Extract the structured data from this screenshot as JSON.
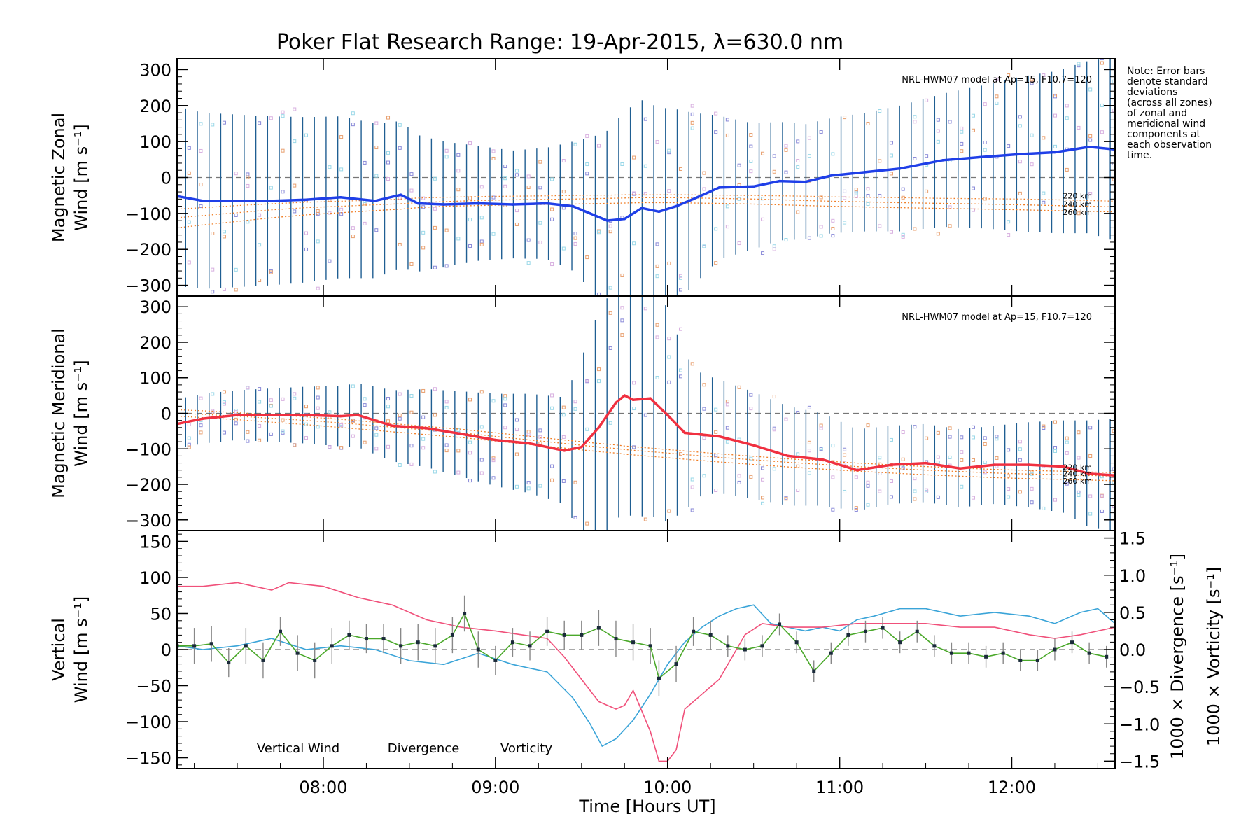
{
  "title": "Poker Flat Research Range: 19-Apr-2015, λ=630.0 nm",
  "note": [
    "Note: Error bars",
    "denote standard",
    "deviations",
    "(across all zones)",
    "of zonal and",
    "meridional wind",
    "components at",
    "each observation",
    "time."
  ],
  "x_axis": {
    "label": "Time [Hours UT]",
    "range_hours": [
      7.15,
      12.6
    ],
    "ticks": [
      {
        "value": 8,
        "label": "08:00"
      },
      {
        "value": 9,
        "label": "09:00"
      },
      {
        "value": 10,
        "label": "10:00"
      },
      {
        "value": 11,
        "label": "11:00"
      },
      {
        "value": 12,
        "label": "12:00"
      }
    ]
  },
  "model_label": "NRL-HWM07 model at Ap=15, F10.7=120",
  "model_heights": [
    "220 km",
    "240 km",
    "260 km"
  ],
  "colors": {
    "zonal": "#1f3fe8",
    "meridional": "#f03040",
    "vertical": "#4aa82a",
    "divergence": "#3aa4d8",
    "vorticity": "#f0507a",
    "model": "#f07d24",
    "errorbar": "#1f5e92",
    "samples": "#8a8ad8"
  },
  "chart_data": [
    {
      "type": "line",
      "name": "zonal-panel",
      "ylabel": [
        "Magnetic Zonal",
        "Wind [m s⁻¹]"
      ],
      "ylim": [
        -330,
        330
      ],
      "yticks": [
        300,
        200,
        100,
        0,
        -100,
        -200,
        -300
      ],
      "x": [
        7.15,
        7.3,
        7.5,
        7.7,
        7.9,
        8.1,
        8.3,
        8.45,
        8.55,
        8.7,
        8.9,
        9.1,
        9.3,
        9.45,
        9.55,
        9.65,
        9.75,
        9.85,
        9.95,
        10.05,
        10.15,
        10.3,
        10.5,
        10.65,
        10.8,
        10.95,
        11.15,
        11.35,
        11.6,
        11.85,
        12.05,
        12.25,
        12.45,
        12.6
      ],
      "series": [
        {
          "values": [
            -52,
            -65,
            -65,
            -65,
            -62,
            -55,
            -65,
            -48,
            -72,
            -75,
            -72,
            -75,
            -72,
            -80,
            -100,
            -120,
            -115,
            -85,
            -95,
            -80,
            -60,
            -28,
            -25,
            -10,
            -12,
            5,
            15,
            25,
            48,
            58,
            65,
            70,
            85,
            78
          ]
        }
      ],
      "errorbar_half_width": [
        250,
        245,
        240,
        235,
        230,
        225,
        215,
        205,
        190,
        175,
        160,
        150,
        155,
        180,
        210,
        250,
        300,
        300,
        290,
        270,
        240,
        200,
        175,
        165,
        160,
        160,
        165,
        175,
        185,
        200,
        215,
        225,
        240,
        255
      ],
      "model_curves": [
        [
          -140,
          -132,
          -122,
          -112,
          -104,
          -98,
          -92,
          -88,
          -84,
          -80,
          -78,
          -76,
          -75,
          -74,
          -73,
          -72,
          -71,
          -70,
          -70,
          -70,
          -71,
          -72,
          -74,
          -76,
          -78,
          -80,
          -82,
          -84,
          -86,
          -88,
          -90,
          -92,
          -94,
          -96
        ],
        [
          -112,
          -106,
          -98,
          -90,
          -84,
          -80,
          -76,
          -73,
          -70,
          -67,
          -64,
          -62,
          -61,
          -60,
          -59,
          -58,
          -57,
          -56,
          -56,
          -56,
          -57,
          -58,
          -60,
          -62,
          -64,
          -66,
          -68,
          -70,
          -72,
          -74,
          -76,
          -78,
          -80,
          -82
        ],
        [
          -88,
          -84,
          -78,
          -73,
          -69,
          -66,
          -63,
          -60,
          -57,
          -55,
          -53,
          -52,
          -51,
          -50,
          -49,
          -49,
          -48,
          -48,
          -48,
          -48,
          -48,
          -49,
          -50,
          -51,
          -52,
          -54,
          -55,
          -56,
          -58,
          -59,
          -60,
          -62,
          -64,
          -66
        ]
      ]
    },
    {
      "type": "line",
      "name": "meridional-panel",
      "ylabel": [
        "Magnetic Meridional",
        "Wind [m s⁻¹]"
      ],
      "ylim": [
        -330,
        330
      ],
      "yticks": [
        300,
        200,
        100,
        0,
        -100,
        -200,
        -300
      ],
      "x": [
        7.15,
        7.3,
        7.5,
        7.7,
        7.9,
        8.1,
        8.2,
        8.4,
        8.6,
        8.8,
        9.0,
        9.2,
        9.4,
        9.5,
        9.6,
        9.7,
        9.75,
        9.8,
        9.9,
        10.0,
        10.1,
        10.2,
        10.3,
        10.5,
        10.7,
        10.9,
        11.1,
        11.3,
        11.5,
        11.7,
        11.9,
        12.1,
        12.3,
        12.45,
        12.6
      ],
      "series": [
        {
          "values": [
            -30,
            -15,
            -5,
            -5,
            -5,
            -8,
            -5,
            -35,
            -42,
            -58,
            -75,
            -85,
            -105,
            -95,
            -40,
            30,
            50,
            38,
            42,
            -5,
            -55,
            -60,
            -65,
            -90,
            -120,
            -130,
            -160,
            -145,
            -140,
            -155,
            -145,
            -145,
            -150,
            -170,
            -175
          ]
        }
      ],
      "errorbar_half_width": [
        70,
        70,
        70,
        75,
        80,
        85,
        90,
        100,
        110,
        120,
        130,
        140,
        150,
        250,
        330,
        330,
        330,
        330,
        330,
        300,
        220,
        170,
        160,
        150,
        140,
        130,
        115,
        110,
        110,
        110,
        110,
        120,
        130,
        150,
        160
      ],
      "model_curves": [
        [
          -8,
          -12,
          -18,
          -25,
          -32,
          -40,
          -44,
          -52,
          -60,
          -68,
          -78,
          -88,
          -98,
          -103,
          -108,
          -112,
          -115,
          -117,
          -121,
          -125,
          -129,
          -133,
          -137,
          -144,
          -151,
          -157,
          -163,
          -168,
          -173,
          -177,
          -181,
          -184,
          -186,
          -188,
          -190
        ],
        [
          0,
          -3,
          -8,
          -14,
          -20,
          -27,
          -31,
          -39,
          -47,
          -55,
          -65,
          -75,
          -85,
          -90,
          -95,
          -99,
          -102,
          -104,
          -108,
          -112,
          -116,
          -120,
          -124,
          -131,
          -138,
          -144,
          -150,
          -155,
          -160,
          -164,
          -168,
          -171,
          -173,
          -175,
          -177
        ],
        [
          10,
          7,
          2,
          -4,
          -10,
          -17,
          -21,
          -29,
          -37,
          -45,
          -55,
          -65,
          -75,
          -80,
          -85,
          -89,
          -92,
          -94,
          -98,
          -102,
          -106,
          -110,
          -114,
          -121,
          -128,
          -134,
          -140,
          -145,
          -150,
          -154,
          -158,
          -161,
          -163,
          -165,
          -167
        ]
      ]
    },
    {
      "type": "line",
      "name": "vertical-panel",
      "ylabel": [
        "Vertical",
        "Wind [m s⁻¹]"
      ],
      "ylim": [
        -165,
        165
      ],
      "yticks": [
        150,
        100,
        50,
        0,
        -50,
        -100,
        -150
      ],
      "y2": {
        "ylim": [
          -1.6,
          1.6
        ],
        "ticks": [
          1.5,
          1.0,
          0.5,
          0.0,
          -0.5,
          -1.0,
          -1.5
        ],
        "tick_labels": [
          "1.5",
          "1.0",
          "0.5",
          "0.0",
          "−0.5",
          "−1.0",
          "−1.5"
        ],
        "label_divergence": "1000 × Divergence [s⁻¹]",
        "label_vorticity": "1000 × Vorticity [s⁻¹]"
      },
      "legend": [
        "Vertical Wind",
        "Divergence",
        "Vorticity"
      ],
      "vertical": {
        "x": [
          7.15,
          7.25,
          7.35,
          7.45,
          7.55,
          7.65,
          7.75,
          7.85,
          7.95,
          8.05,
          8.15,
          8.25,
          8.35,
          8.45,
          8.55,
          8.65,
          8.75,
          8.82,
          8.9,
          9.0,
          9.1,
          9.2,
          9.3,
          9.4,
          9.5,
          9.6,
          9.7,
          9.8,
          9.9,
          9.95,
          10.05,
          10.15,
          10.25,
          10.35,
          10.45,
          10.55,
          10.65,
          10.75,
          10.85,
          10.95,
          11.05,
          11.15,
          11.25,
          11.35,
          11.45,
          11.55,
          11.65,
          11.75,
          11.85,
          11.95,
          12.05,
          12.15,
          12.25,
          12.35,
          12.45,
          12.55
        ],
        "values": [
          5,
          5,
          8,
          -18,
          5,
          -15,
          25,
          -5,
          -15,
          5,
          20,
          15,
          15,
          5,
          10,
          5,
          20,
          50,
          0,
          -15,
          10,
          5,
          25,
          20,
          20,
          30,
          15,
          10,
          5,
          -40,
          -20,
          25,
          20,
          5,
          0,
          5,
          35,
          10,
          -30,
          -5,
          20,
          25,
          30,
          10,
          25,
          5,
          -5,
          -5,
          -10,
          -5,
          -15,
          -15,
          0,
          10,
          -5,
          -10
        ],
        "err": [
          20,
          25,
          25,
          20,
          25,
          25,
          20,
          25,
          25,
          25,
          20,
          20,
          20,
          25,
          25,
          25,
          25,
          25,
          25,
          20,
          20,
          20,
          20,
          20,
          20,
          25,
          25,
          25,
          25,
          25,
          25,
          20,
          20,
          15,
          15,
          15,
          15,
          15,
          15,
          15,
          15,
          15,
          15,
          15,
          15,
          15,
          15,
          15,
          15,
          15,
          15,
          15,
          15,
          15,
          15,
          15
        ]
      },
      "divergence": {
        "x": [
          7.15,
          7.3,
          7.5,
          7.7,
          7.9,
          8.1,
          8.3,
          8.5,
          8.7,
          8.9,
          9.1,
          9.3,
          9.45,
          9.55,
          9.62,
          9.7,
          9.8,
          9.9,
          10.0,
          10.1,
          10.2,
          10.3,
          10.4,
          10.5,
          10.6,
          10.7,
          10.8,
          10.9,
          11.0,
          11.1,
          11.2,
          11.35,
          11.5,
          11.7,
          11.9,
          12.1,
          12.25,
          12.4,
          12.5,
          12.6
        ],
        "values": [
          0.05,
          0.0,
          0.05,
          0.15,
          0.0,
          0.05,
          0.0,
          -0.15,
          -0.2,
          -0.05,
          -0.2,
          -0.3,
          -0.65,
          -1.0,
          -1.3,
          -1.2,
          -0.95,
          -0.6,
          -0.2,
          0.1,
          0.3,
          0.45,
          0.55,
          0.6,
          0.35,
          0.3,
          0.25,
          0.3,
          0.25,
          0.4,
          0.45,
          0.55,
          0.55,
          0.45,
          0.5,
          0.45,
          0.35,
          0.5,
          0.55,
          0.35
        ]
      },
      "vorticity": {
        "x": [
          7.15,
          7.3,
          7.5,
          7.6,
          7.7,
          7.8,
          8.0,
          8.2,
          8.4,
          8.6,
          8.8,
          9.0,
          9.15,
          9.3,
          9.4,
          9.5,
          9.6,
          9.7,
          9.75,
          9.8,
          9.9,
          9.95,
          10.0,
          10.05,
          10.1,
          10.2,
          10.3,
          10.45,
          10.55,
          10.7,
          10.9,
          11.1,
          11.25,
          11.5,
          11.7,
          11.9,
          12.1,
          12.25,
          12.4,
          12.6
        ],
        "values": [
          0.85,
          0.85,
          0.9,
          0.85,
          0.8,
          0.9,
          0.85,
          0.7,
          0.6,
          0.4,
          0.3,
          0.25,
          0.2,
          0.15,
          -0.1,
          -0.4,
          -0.7,
          -0.8,
          -0.75,
          -0.55,
          -1.1,
          -1.5,
          -1.5,
          -1.35,
          -0.8,
          -0.6,
          -0.4,
          0.2,
          0.35,
          0.3,
          0.3,
          0.35,
          0.35,
          0.35,
          0.3,
          0.3,
          0.2,
          0.15,
          0.2,
          0.3
        ]
      }
    }
  ]
}
